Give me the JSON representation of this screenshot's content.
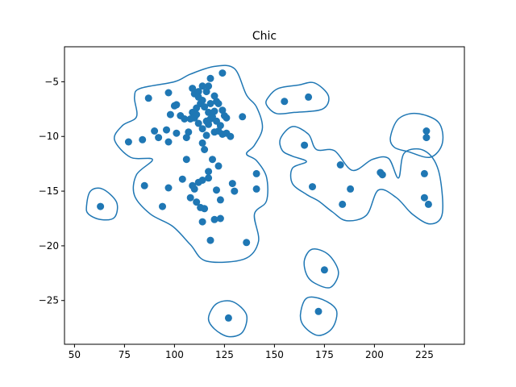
{
  "chart_data": {
    "type": "scatter",
    "title": "Chic",
    "xlabel": "",
    "ylabel": "",
    "xlim": [
      45,
      245
    ],
    "ylim": [
      -29,
      -1.8
    ],
    "xticks": [
      50,
      75,
      100,
      125,
      150,
      175,
      200,
      225
    ],
    "yticks": [
      -5,
      -10,
      -15,
      -20,
      -25
    ],
    "grid": false,
    "colors": {
      "series": "#1f77b4",
      "contour": "#1f77b4"
    },
    "series": [
      {
        "points": [
          [
            63,
            -16.4
          ],
          [
            77,
            -10.5
          ],
          [
            84,
            -10.3
          ],
          [
            85,
            -14.5
          ],
          [
            87,
            -6.5
          ],
          [
            90,
            -9.5
          ],
          [
            92,
            -10.1
          ],
          [
            94,
            -16.4
          ],
          [
            96,
            -9.4
          ],
          [
            97,
            -6.0
          ],
          [
            97,
            -10.5
          ],
          [
            97,
            -14.7
          ],
          [
            98,
            -8.0
          ],
          [
            100,
            -7.2
          ],
          [
            101,
            -7.1
          ],
          [
            101,
            -9.7
          ],
          [
            103,
            -8.1
          ],
          [
            104,
            -13.9
          ],
          [
            105,
            -8.4
          ],
          [
            106,
            -10.1
          ],
          [
            106,
            -12.1
          ],
          [
            107,
            -9.6
          ],
          [
            108,
            -8.4
          ],
          [
            108,
            -15.6
          ],
          [
            109,
            -5.6
          ],
          [
            109,
            -7.8
          ],
          [
            109,
            -14.5
          ],
          [
            110,
            -6.1
          ],
          [
            110,
            -8.3
          ],
          [
            110,
            -14.8
          ],
          [
            111,
            -7.4
          ],
          [
            111,
            -8.0
          ],
          [
            111,
            -16.0
          ],
          [
            112,
            -5.9
          ],
          [
            112,
            -6.4
          ],
          [
            112,
            -8.8
          ],
          [
            112,
            -14.2
          ],
          [
            113,
            -7.0
          ],
          [
            113,
            -16.5
          ],
          [
            114,
            -5.4
          ],
          [
            114,
            -6.7
          ],
          [
            114,
            -9.3
          ],
          [
            114,
            -10.6
          ],
          [
            114,
            -14.0
          ],
          [
            114,
            -17.8
          ],
          [
            115,
            -7.3
          ],
          [
            115,
            -11.2
          ],
          [
            115,
            -16.6
          ],
          [
            116,
            -5.9
          ],
          [
            116,
            -8.6
          ],
          [
            116,
            -9.9
          ],
          [
            117,
            -5.4
          ],
          [
            117,
            -7.8
          ],
          [
            117,
            -8.9
          ],
          [
            117,
            -13.2
          ],
          [
            117,
            -13.8
          ],
          [
            118,
            -4.7
          ],
          [
            118,
            -7.0
          ],
          [
            118,
            -8.4
          ],
          [
            118,
            -19.5
          ],
          [
            119,
            -8.2
          ],
          [
            119,
            -12.1
          ],
          [
            120,
            -6.3
          ],
          [
            120,
            -7.7
          ],
          [
            120,
            -9.6
          ],
          [
            120,
            -17.6
          ],
          [
            121,
            -6.8
          ],
          [
            121,
            -8.6
          ],
          [
            121,
            -14.9
          ],
          [
            122,
            -7.0
          ],
          [
            122,
            -9.5
          ],
          [
            122,
            -12.7
          ],
          [
            123,
            -9.0
          ],
          [
            123,
            -15.8
          ],
          [
            123,
            -17.5
          ],
          [
            124,
            -4.2
          ],
          [
            124,
            -7.6
          ],
          [
            124,
            -9.8
          ],
          [
            125,
            -8.1
          ],
          [
            126,
            -9.7
          ],
          [
            126,
            -8.3
          ],
          [
            127,
            -26.6
          ],
          [
            128,
            -10.0
          ],
          [
            129,
            -14.3
          ],
          [
            130,
            -15.0
          ],
          [
            134,
            -8.2
          ],
          [
            136,
            -19.7
          ],
          [
            141,
            -13.4
          ],
          [
            141,
            -14.8
          ],
          [
            155,
            -6.8
          ],
          [
            165,
            -10.8
          ],
          [
            167,
            -6.4
          ],
          [
            169,
            -14.6
          ],
          [
            172,
            -26.0
          ],
          [
            175,
            -22.2
          ],
          [
            183,
            -12.6
          ],
          [
            184,
            -16.2
          ],
          [
            188,
            -14.8
          ],
          [
            203,
            -13.3
          ],
          [
            204,
            -13.5
          ],
          [
            225,
            -15.6
          ],
          [
            225,
            -13.4
          ],
          [
            226,
            -10.1
          ],
          [
            226,
            -9.5
          ],
          [
            227,
            -16.2
          ]
        ]
      }
    ],
    "contours": [
      [
        [
          83,
          -5.6
        ],
        [
          100,
          -5.0
        ],
        [
          108,
          -4.3
        ],
        [
          120,
          -3.6
        ],
        [
          130,
          -3.8
        ],
        [
          136,
          -6.2
        ],
        [
          141,
          -7.3
        ],
        [
          144,
          -9.2
        ],
        [
          140,
          -10.8
        ],
        [
          136,
          -11.6
        ],
        [
          141,
          -12.2
        ],
        [
          146,
          -13.7
        ],
        [
          146,
          -15.9
        ],
        [
          140,
          -17.1
        ],
        [
          142,
          -19.6
        ],
        [
          135,
          -21.2
        ],
        [
          116,
          -21.4
        ],
        [
          108,
          -19.9
        ],
        [
          99,
          -18.2
        ],
        [
          88,
          -17.1
        ],
        [
          80,
          -15.4
        ],
        [
          81,
          -13.5
        ],
        [
          89,
          -12.1
        ],
        [
          78,
          -11.9
        ],
        [
          70,
          -10.3
        ],
        [
          74,
          -9.0
        ],
        [
          81,
          -8.2
        ],
        [
          80,
          -6.4
        ]
      ],
      [
        [
          147,
          -6.4
        ],
        [
          152,
          -5.6
        ],
        [
          162,
          -5.3
        ],
        [
          170,
          -5.1
        ],
        [
          177,
          -6.3
        ],
        [
          174,
          -7.5
        ],
        [
          160,
          -7.8
        ],
        [
          151,
          -7.9
        ],
        [
          146,
          -7.1
        ]
      ],
      [
        [
          56,
          -16.4
        ],
        [
          58,
          -15.0
        ],
        [
          64,
          -14.8
        ],
        [
          71,
          -16.0
        ],
        [
          70,
          -17.4
        ],
        [
          63,
          -17.6
        ],
        [
          57,
          -17.1
        ]
      ],
      [
        [
          208,
          -10.1
        ],
        [
          212,
          -8.4
        ],
        [
          221,
          -7.9
        ],
        [
          232,
          -8.7
        ],
        [
          234,
          -10.6
        ],
        [
          228,
          -11.9
        ],
        [
          217,
          -11.4
        ],
        [
          210,
          -11.0
        ]
      ],
      [
        [
          153,
          -10.2
        ],
        [
          159,
          -9.1
        ],
        [
          167,
          -9.8
        ],
        [
          171,
          -11.2
        ],
        [
          180,
          -11.3
        ],
        [
          189,
          -13.1
        ],
        [
          199,
          -12.1
        ],
        [
          207,
          -12.0
        ],
        [
          212,
          -13.8
        ],
        [
          215,
          -11.5
        ],
        [
          225,
          -11.3
        ],
        [
          232,
          -13.1
        ],
        [
          234,
          -17.0
        ],
        [
          228,
          -18.0
        ],
        [
          219,
          -17.1
        ],
        [
          211,
          -15.6
        ],
        [
          202,
          -14.9
        ],
        [
          196,
          -17.2
        ],
        [
          186,
          -17.7
        ],
        [
          179,
          -16.9
        ],
        [
          172,
          -15.9
        ],
        [
          166,
          -15.3
        ],
        [
          159,
          -14.3
        ],
        [
          159,
          -12.9
        ],
        [
          166,
          -12.3
        ],
        [
          159,
          -11.8
        ],
        [
          154,
          -11.3
        ]
      ],
      [
        [
          165,
          -21.3
        ],
        [
          169,
          -20.3
        ],
        [
          177,
          -20.8
        ],
        [
          182,
          -22.4
        ],
        [
          178,
          -23.8
        ],
        [
          170,
          -23.4
        ],
        [
          166,
          -22.6
        ]
      ],
      [
        [
          163,
          -26.3
        ],
        [
          166,
          -24.8
        ],
        [
          174,
          -24.9
        ],
        [
          181,
          -25.9
        ],
        [
          179,
          -27.5
        ],
        [
          172,
          -28.2
        ],
        [
          165,
          -27.4
        ]
      ],
      [
        [
          117,
          -26.6
        ],
        [
          121,
          -25.3
        ],
        [
          129,
          -25.1
        ],
        [
          136,
          -26.3
        ],
        [
          134,
          -27.9
        ],
        [
          127,
          -28.3
        ],
        [
          120,
          -27.6
        ]
      ]
    ]
  }
}
